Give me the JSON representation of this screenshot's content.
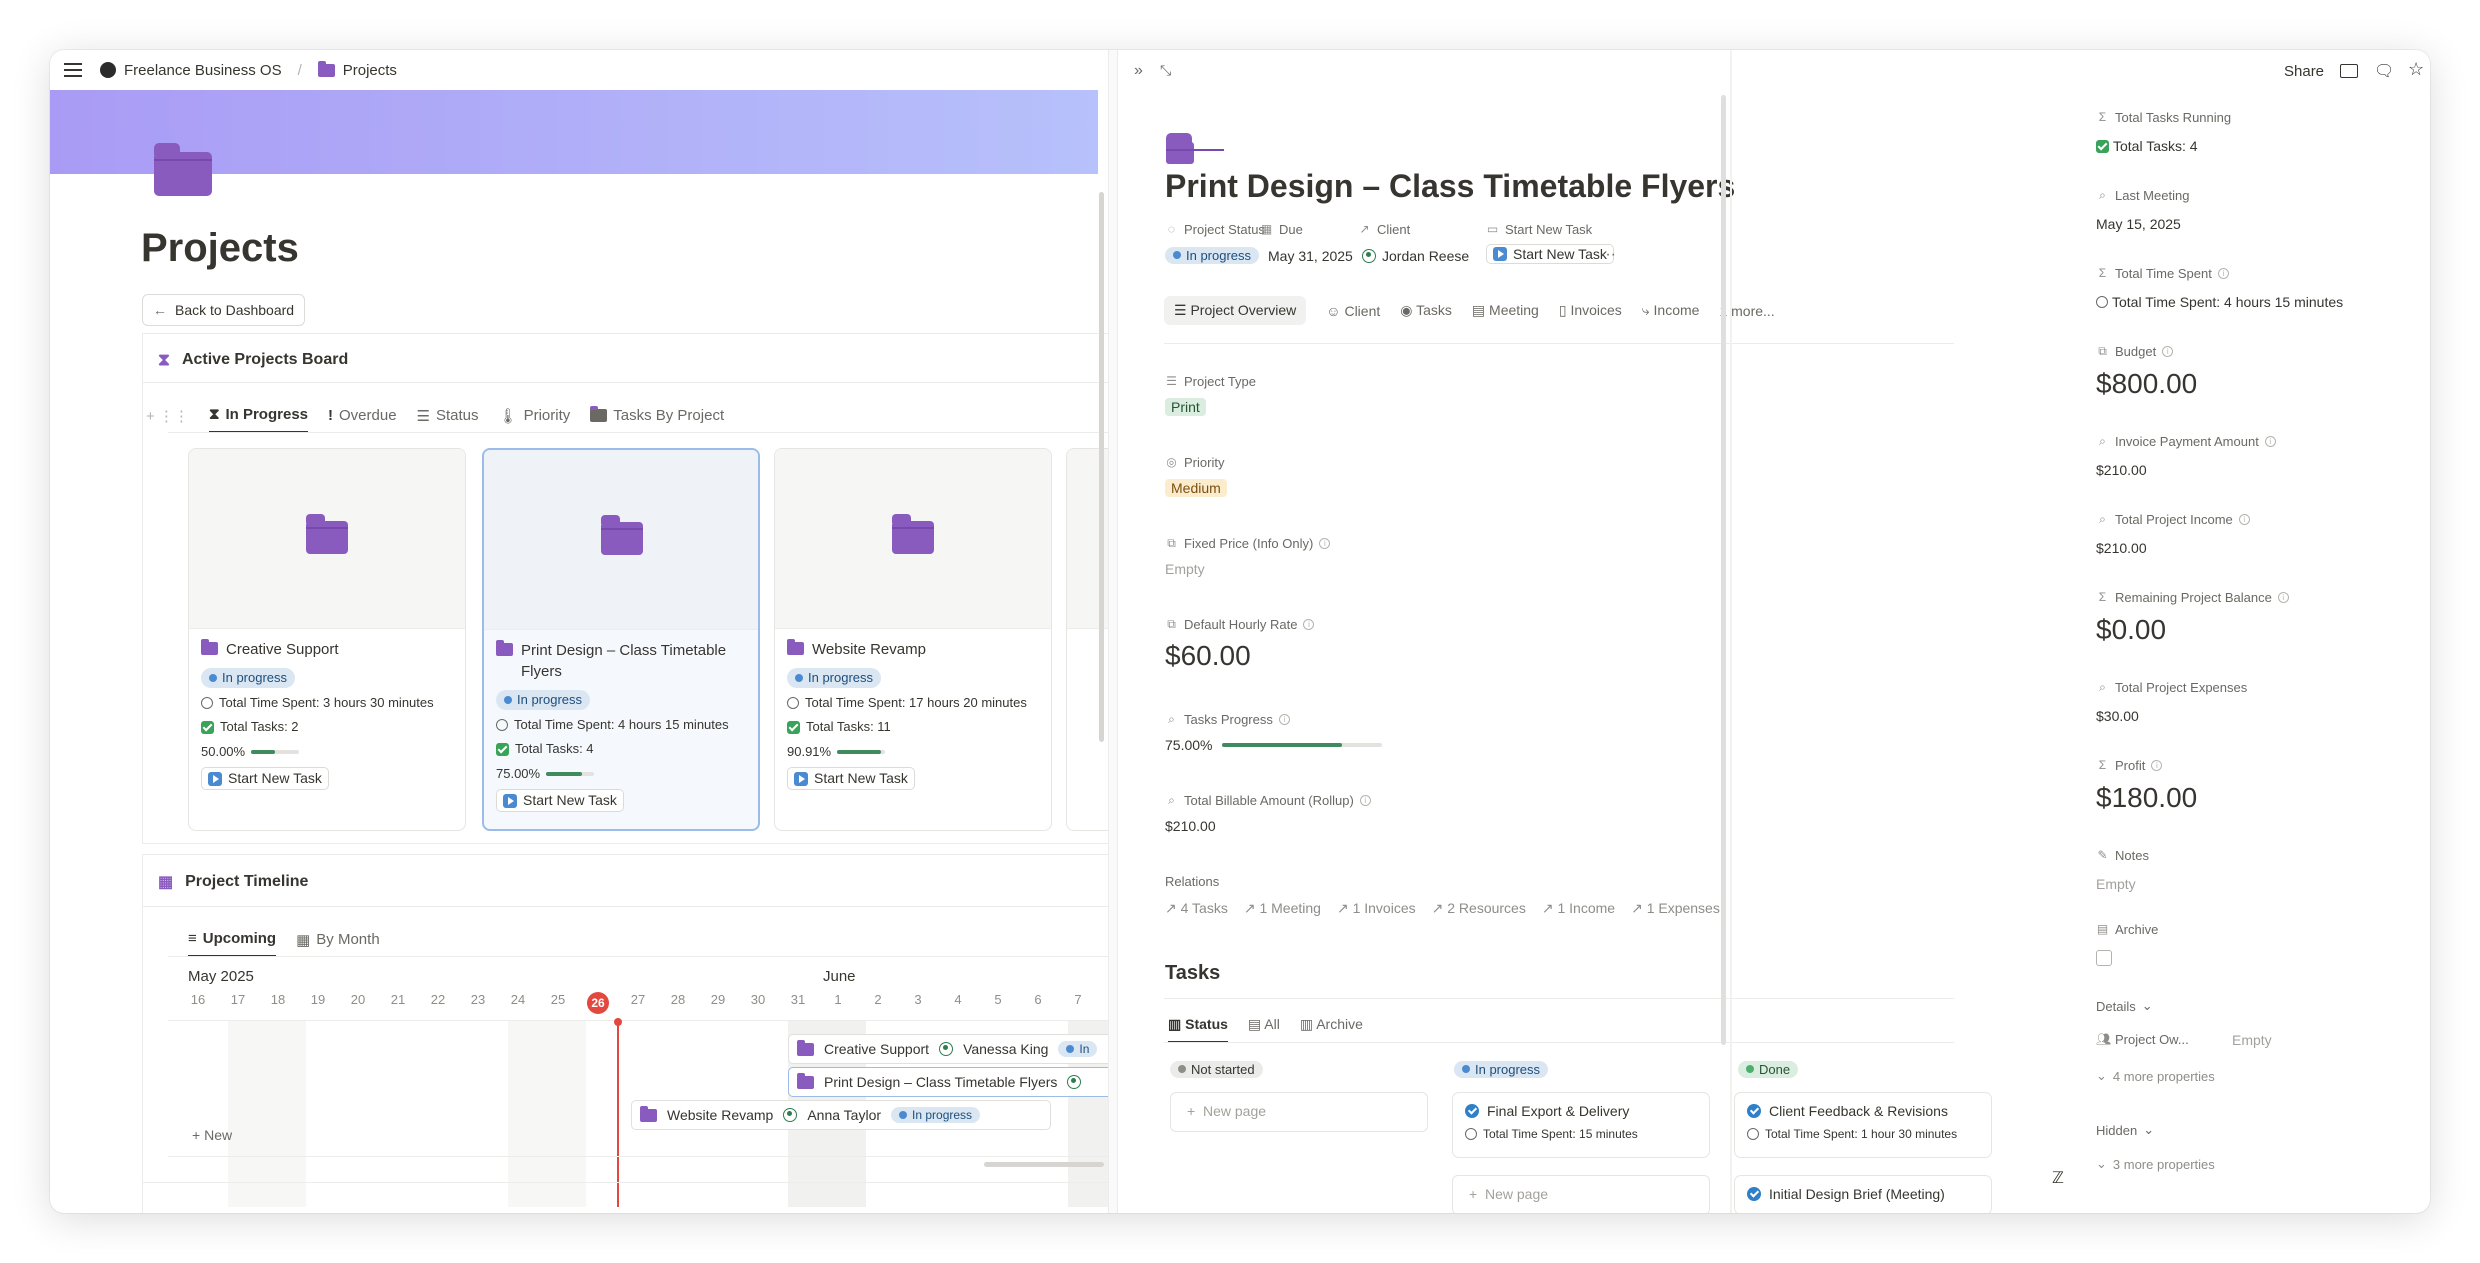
{
  "breadcrumb": {
    "workspace": "Freelance Business OS",
    "page": "Projects"
  },
  "page": {
    "title": "Projects",
    "back_button": "Back to Dashboard"
  },
  "board": {
    "title": "Active Projects Board",
    "views": [
      "In Progress",
      "Overdue",
      "Status",
      "Priority",
      "Tasks By Project"
    ],
    "cards": [
      {
        "title": "Creative Support",
        "status": "In progress",
        "time": "Total Time Spent: 3 hours 30 minutes",
        "tasks": "Total Tasks: 2",
        "progress_label": "50.00%",
        "progress": 0.5,
        "button": "Start New Task"
      },
      {
        "title": "Print Design – Class Timetable Flyers",
        "status": "In progress",
        "time": "Total Time Spent: 4 hours 15 minutes",
        "tasks": "Total Tasks: 4",
        "progress_label": "75.00%",
        "progress": 0.75,
        "button": "Start New Task"
      },
      {
        "title": "Website Revamp",
        "status": "In progress",
        "time": "Total Time Spent: 17 hours 20 minutes",
        "tasks": "Total Tasks: 11",
        "progress_label": "90.91%",
        "progress": 0.9091,
        "button": "Start New Task"
      }
    ]
  },
  "timeline": {
    "title": "Project Timeline",
    "views": [
      "Upcoming",
      "By Month"
    ],
    "month_left": "May 2025",
    "month_right": "June",
    "days": [
      "16",
      "17",
      "18",
      "19",
      "20",
      "21",
      "22",
      "23",
      "24",
      "25",
      "26",
      "27",
      "28",
      "29",
      "30",
      "31",
      "1",
      "2",
      "3",
      "4",
      "5",
      "6",
      "7"
    ],
    "today": "26",
    "items": [
      {
        "title": "Creative Support",
        "person": "Vanessa King",
        "status": "In"
      },
      {
        "title": "Print Design – Class Timetable Flyers",
        "person": "",
        "status": ""
      },
      {
        "title": "Website Revamp",
        "person": "Anna Taylor",
        "status": "In progress"
      }
    ],
    "new_label": "New"
  },
  "detail": {
    "topbar": {
      "share": "Share"
    },
    "title": "Print Design – Class Timetable Flyers",
    "props_row": {
      "labels": [
        "Project Status",
        "Due",
        "Client",
        "Start New Task"
      ],
      "status": "In progress",
      "due": "May 31, 2025",
      "client": "Jordan Reese",
      "start_btn": "Start New Task",
      "more": "···"
    },
    "tabs": [
      "Project Overview",
      "Client",
      "Tasks",
      "Meeting",
      "Invoices",
      "Income",
      "1 more..."
    ],
    "fields": {
      "project_type_label": "Project Type",
      "project_type": "Print",
      "priority_label": "Priority",
      "priority": "Medium",
      "fixed_price_label": "Fixed Price (Info Only)",
      "fixed_price": "Empty",
      "hourly_label": "Default Hourly Rate",
      "hourly": "$60.00",
      "progress_label": "Tasks Progress",
      "progress": "75.00%",
      "progress_value": 0.75,
      "billable_label": "Total Billable Amount (Rollup)",
      "billable": "$210.00",
      "relations_label": "Relations",
      "relations": [
        "4 Tasks",
        "1 Meeting",
        "1 Invoices",
        "2 Resources",
        "1 Income",
        "1 Expenses"
      ]
    },
    "tasks": {
      "title": "Tasks",
      "views": [
        "Status",
        "All",
        "Archive"
      ],
      "columns": [
        {
          "label": "Not started",
          "new": "New page"
        },
        {
          "label": "In progress",
          "card_title": "Final Export & Delivery",
          "card_meta": "Total Time Spent: 15 minutes",
          "new": "New page"
        },
        {
          "label": "Done",
          "card_title": "Client Feedback & Revisions",
          "card_meta": "Total Time Spent: 1 hour 30 minutes",
          "card2_title": "Initial Design Brief (Meeting)"
        }
      ]
    },
    "sidebar": {
      "total_tasks_label": "Total Tasks Running",
      "total_tasks": "Total Tasks: 4",
      "last_meeting_label": "Last Meeting",
      "last_meeting": "May 15, 2025",
      "time_label": "Total Time Spent",
      "time": "Total Time Spent: 4 hours 15 minutes",
      "budget_label": "Budget",
      "budget": "$800.00",
      "invoice_label": "Invoice Payment Amount",
      "invoice": "$210.00",
      "income_label": "Total Project Income",
      "income": "$210.00",
      "remaining_label": "Remaining Project Balance",
      "remaining": "$0.00",
      "expenses_label": "Total Project Expenses",
      "expenses": "$30.00",
      "profit_label": "Profit",
      "profit": "$180.00",
      "notes_label": "Notes",
      "notes": "Empty",
      "archive_label": "Archive",
      "details_label": "Details",
      "owner_label": "Project Ow...",
      "owner": "Empty",
      "more_props": "4 more properties",
      "hidden_label": "Hidden",
      "hidden_more": "3 more properties"
    }
  }
}
